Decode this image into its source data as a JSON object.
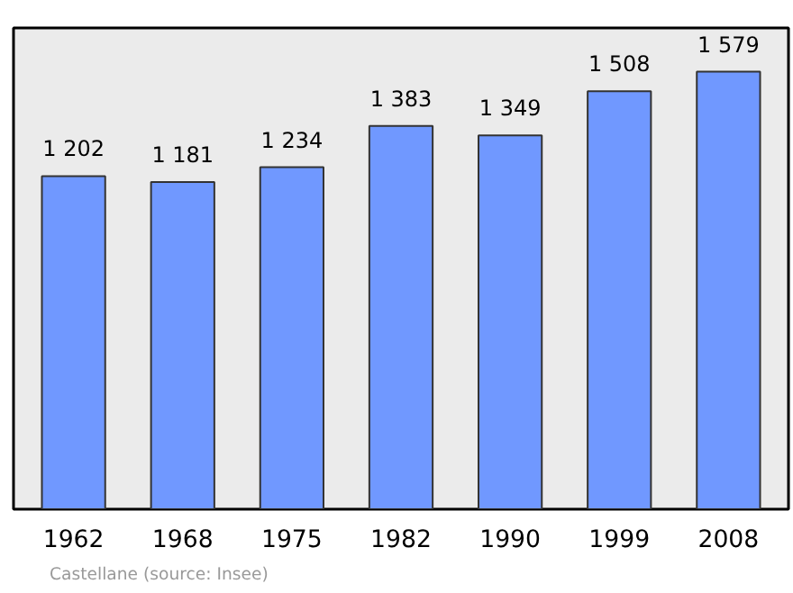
{
  "chart_data": {
    "type": "bar",
    "categories": [
      "1962",
      "1968",
      "1975",
      "1982",
      "1990",
      "1999",
      "2008"
    ],
    "values": [
      1202,
      1181,
      1234,
      1383,
      1349,
      1508,
      1579
    ],
    "value_labels": [
      "1 202",
      "1 181",
      "1 234",
      "1 383",
      "1 349",
      "1 508",
      "1 579"
    ],
    "color": "#7098ff",
    "grid": false,
    "annotations": [
      "Castellane    (source: Insee)"
    ]
  }
}
